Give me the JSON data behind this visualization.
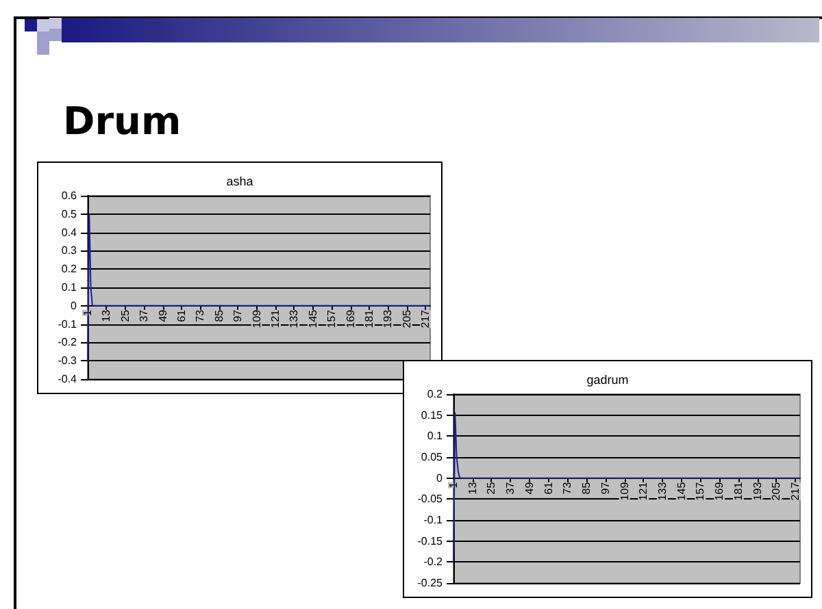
{
  "chart_data": [
    {
      "type": "line",
      "title": "asha",
      "annotations": [
        "Drum"
      ],
      "categories": [
        "1",
        null,
        null,
        null,
        null,
        null,
        null,
        null,
        null,
        null,
        null,
        null,
        "13",
        null,
        null,
        null,
        null,
        null,
        null,
        null,
        null,
        null,
        null,
        null,
        "25",
        null,
        null,
        null,
        null,
        null,
        null,
        null,
        null,
        null,
        null,
        null,
        "37",
        null,
        null,
        null,
        null,
        null,
        null,
        null,
        null,
        null,
        null,
        null,
        "49",
        null,
        null,
        null,
        null,
        null,
        null,
        null,
        null,
        null,
        null,
        null,
        "61",
        null,
        null,
        null,
        null,
        null,
        null,
        null,
        null,
        null,
        null,
        null,
        "73",
        null,
        null,
        null,
        null,
        null,
        null,
        null,
        null,
        null,
        null,
        null,
        "85",
        null,
        null,
        null,
        null,
        null,
        null,
        null,
        null,
        null,
        null,
        null,
        "97",
        null,
        null,
        null,
        null,
        null,
        null,
        null,
        null,
        null,
        null,
        null,
        "109",
        null,
        null,
        null,
        null,
        null,
        null,
        null,
        null,
        null,
        null,
        null,
        "121",
        null,
        null,
        null,
        null,
        null,
        null,
        null,
        null,
        null,
        null,
        null,
        "133",
        null,
        null,
        null,
        null,
        null,
        null,
        null,
        null,
        null,
        null,
        null,
        "145",
        null,
        null,
        null,
        null,
        null,
        null,
        null,
        null,
        null,
        null,
        null,
        "157",
        null,
        null,
        null,
        null,
        null,
        null,
        null,
        null,
        null,
        null,
        null,
        "169",
        null,
        null,
        null,
        null,
        null,
        null,
        null,
        null,
        null,
        null,
        null,
        "181",
        null,
        null,
        null,
        null,
        null,
        null,
        null,
        null,
        null,
        null,
        null,
        "193",
        null,
        null,
        null,
        null,
        null,
        null,
        null,
        null,
        null,
        null,
        null,
        "205",
        null,
        null,
        null,
        null,
        null,
        null,
        null,
        null,
        null,
        null,
        null,
        "217",
        null,
        null,
        null
      ],
      "series": [
        {
          "color": "#1f1f8f",
          "values": [
            -0.3,
            0.5,
            0.1,
            0,
            0,
            0,
            0,
            0,
            0,
            0,
            0,
            0,
            0,
            0,
            0,
            0,
            0,
            0,
            0,
            0,
            0,
            0,
            0,
            0,
            0,
            0,
            0,
            0,
            0,
            0,
            0,
            0,
            0,
            0,
            0,
            0,
            0,
            0,
            0,
            0,
            0,
            0,
            0,
            0,
            0,
            0,
            0,
            0,
            0,
            0,
            0,
            0,
            0,
            0,
            0,
            0,
            0,
            0,
            0,
            0,
            0,
            0,
            0,
            0,
            0,
            0,
            0,
            0,
            0,
            0,
            0,
            0,
            0,
            0,
            0,
            0,
            0,
            0,
            0,
            0,
            0,
            0,
            0,
            0,
            0,
            0,
            0,
            0,
            0,
            0,
            0,
            0,
            0,
            0,
            0,
            0,
            0,
            0,
            0,
            0,
            0,
            0,
            0,
            0,
            0,
            0,
            0,
            0,
            0,
            0,
            0,
            0,
            0,
            0,
            0,
            0,
            0,
            0,
            0,
            0,
            0,
            0,
            0,
            0,
            0,
            0,
            0,
            0,
            0,
            0,
            0,
            0,
            0,
            0,
            0,
            0,
            0,
            0,
            0,
            0,
            0,
            0,
            0,
            0,
            0,
            0,
            0,
            0,
            0,
            0,
            0,
            0,
            0,
            0,
            0,
            0,
            0,
            0,
            0,
            0,
            0,
            0,
            0,
            0,
            0,
            0,
            0,
            0,
            0,
            0,
            0,
            0,
            0,
            0,
            0,
            0,
            0,
            0,
            0,
            0,
            0,
            0,
            0,
            0,
            0,
            0,
            0,
            0,
            0,
            0,
            0,
            0,
            0,
            0,
            0,
            0,
            0,
            0,
            0,
            0,
            0,
            0,
            0,
            0,
            0,
            0,
            0,
            0,
            0,
            0,
            0,
            0,
            0,
            0,
            0,
            0,
            0,
            0,
            0,
            0
          ]
        }
      ],
      "ylim": [
        -0.4,
        0.6
      ],
      "yticks": [
        -0.4,
        -0.3,
        -0.2,
        -0.1,
        0,
        0.1,
        0.2,
        0.3,
        0.4,
        0.5,
        0.6
      ],
      "grid": "y",
      "marker": "none"
    },
    {
      "type": "line",
      "title": "gadrum",
      "categories": [
        "1",
        null,
        null,
        null,
        null,
        null,
        null,
        null,
        null,
        null,
        null,
        null,
        "13",
        null,
        null,
        null,
        null,
        null,
        null,
        null,
        null,
        null,
        null,
        null,
        "25",
        null,
        null,
        null,
        null,
        null,
        null,
        null,
        null,
        null,
        null,
        null,
        "37",
        null,
        null,
        null,
        null,
        null,
        null,
        null,
        null,
        null,
        null,
        null,
        "49",
        null,
        null,
        null,
        null,
        null,
        null,
        null,
        null,
        null,
        null,
        null,
        "61",
        null,
        null,
        null,
        null,
        null,
        null,
        null,
        null,
        null,
        null,
        null,
        "73",
        null,
        null,
        null,
        null,
        null,
        null,
        null,
        null,
        null,
        null,
        null,
        "85",
        null,
        null,
        null,
        null,
        null,
        null,
        null,
        null,
        null,
        null,
        null,
        "97",
        null,
        null,
        null,
        null,
        null,
        null,
        null,
        null,
        null,
        null,
        null,
        "109",
        null,
        null,
        null,
        null,
        null,
        null,
        null,
        null,
        null,
        null,
        null,
        "121",
        null,
        null,
        null,
        null,
        null,
        null,
        null,
        null,
        null,
        null,
        null,
        "133",
        null,
        null,
        null,
        null,
        null,
        null,
        null,
        null,
        null,
        null,
        null,
        "145",
        null,
        null,
        null,
        null,
        null,
        null,
        null,
        null,
        null,
        null,
        null,
        "157",
        null,
        null,
        null,
        null,
        null,
        null,
        null,
        null,
        null,
        null,
        null,
        "169",
        null,
        null,
        null,
        null,
        null,
        null,
        null,
        null,
        null,
        null,
        null,
        "181",
        null,
        null,
        null,
        null,
        null,
        null,
        null,
        null,
        null,
        null,
        null,
        "193",
        null,
        null,
        null,
        null,
        null,
        null,
        null,
        null,
        null,
        null,
        null,
        "205",
        null,
        null,
        null,
        null,
        null,
        null,
        null,
        null,
        null,
        null,
        null,
        "217",
        null,
        null,
        null
      ],
      "series": [
        {
          "color": "#1f1f8f",
          "values": [
            -0.2,
            0.155,
            0.05,
            0.015,
            0,
            0,
            0,
            0,
            0,
            0,
            0,
            0,
            0,
            0,
            0,
            0,
            0,
            0,
            0,
            0,
            0,
            0,
            0,
            0,
            0,
            0,
            0,
            0,
            0,
            0,
            0,
            0,
            0,
            0,
            0,
            0,
            0,
            0,
            0,
            0,
            0,
            0,
            0,
            0,
            0,
            0,
            0,
            0,
            0,
            0,
            0,
            0,
            0,
            0,
            0,
            0,
            0,
            0,
            0,
            0,
            0,
            0,
            0,
            0,
            0,
            0,
            0,
            0,
            0,
            0,
            0,
            0,
            0,
            0,
            0,
            0,
            0,
            0,
            0,
            0,
            0,
            0,
            0,
            0,
            0,
            0,
            0,
            0,
            0,
            0,
            0,
            0,
            0,
            0,
            0,
            0,
            0,
            0,
            0,
            0,
            0,
            0,
            0,
            0,
            0,
            0,
            0,
            0,
            0,
            0,
            0,
            0,
            0,
            0,
            0,
            0,
            0,
            0,
            0,
            0,
            0,
            0,
            0,
            0,
            0,
            0,
            0,
            0,
            0,
            0,
            0,
            0,
            0,
            0,
            0,
            0,
            0,
            0,
            0,
            0,
            0,
            0,
            0,
            0,
            0,
            0,
            0,
            0,
            0,
            0,
            0,
            0,
            0,
            0,
            0,
            0,
            0,
            0,
            0,
            0,
            0,
            0,
            0,
            0,
            0,
            0,
            0,
            0,
            0,
            0,
            0,
            0,
            0,
            0,
            0,
            0,
            0,
            0,
            0,
            0,
            0,
            0,
            0,
            0,
            0,
            0,
            0,
            0,
            0,
            0,
            0,
            0,
            0,
            0,
            0,
            0,
            0,
            0,
            0,
            0,
            0,
            0,
            0,
            0,
            0,
            0,
            0,
            0,
            0,
            0,
            0,
            0,
            0,
            0,
            0,
            0,
            0,
            0,
            0,
            0
          ]
        }
      ],
      "ylim": [
        -0.25,
        0.2
      ],
      "yticks": [
        -0.25,
        -0.2,
        -0.15,
        -0.1,
        -0.05,
        0,
        0.05,
        0.1,
        0.15,
        0.2
      ],
      "grid": "y",
      "marker": "none"
    }
  ]
}
